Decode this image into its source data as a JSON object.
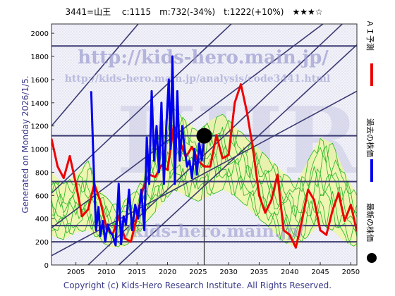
{
  "chart_data": {
    "type": "line",
    "title": "3441=山王　 c:1115　m:732(-34%)　t:1222(+10%)　★★★☆",
    "ylim": [
      0,
      2080
    ],
    "xlim": [
      2001,
      2051
    ],
    "y_ticks": [
      0,
      200,
      400,
      600,
      800,
      1000,
      1200,
      1400,
      1600,
      1800,
      2000
    ],
    "x_ticks": [
      2005,
      2010,
      2015,
      2020,
      2025,
      2030,
      2035,
      2040,
      2045,
      2050
    ],
    "generated_label": "Generated on Monday 2026/1/5.",
    "copyright": "Copyright (c) Kids-Hero Research Institute. All Rights Reserved.",
    "watermark_url": "http://kids-hero.main.jp/",
    "watermark_url_small": "http://kids-hero.main.jp/analysis/code3441.html",
    "watermark_small": "//kids-hero.main.jp/",
    "watermark_big": "KHRI",
    "legend": [
      {
        "name": "ＡＩ予測",
        "color": "#ee0000",
        "kind": "line"
      },
      {
        "name": "過去の株価",
        "color": "#0000ee",
        "kind": "line"
      },
      {
        "name": "最新の株価",
        "color": "#000000",
        "kind": "dot"
      }
    ],
    "horizontal_lines": [
      200,
      340,
      720,
      1115,
      1890
    ],
    "current_point": {
      "x": 2026.0,
      "y": 1115
    },
    "current_x_marker": 2026.0,
    "diagonals": [
      {
        "x1": 2001,
        "y1": 80,
        "x2": 2051,
        "y2": 1500
      },
      {
        "x1": 2001,
        "y1": 320,
        "x2": 2051,
        "y2": 2300
      },
      {
        "x1": 2001,
        "y1": 620,
        "x2": 2051,
        "y2": 3100
      },
      {
        "x1": 2001,
        "y1": 1200,
        "x2": 2051,
        "y2": 4300
      },
      {
        "x1": 2007,
        "y1": 0,
        "x2": 2051,
        "y2": 2200
      },
      {
        "x1": 2012,
        "y1": 0,
        "x2": 2051,
        "y2": 1900
      }
    ],
    "band": {
      "x": [
        2001,
        2003,
        2005,
        2007,
        2009,
        2011,
        2013,
        2015,
        2017,
        2019,
        2021,
        2023,
        2025,
        2027,
        2029,
        2031,
        2033,
        2035,
        2037,
        2039,
        2041,
        2043,
        2045,
        2047,
        2049,
        2051
      ],
      "upper": [
        800,
        700,
        780,
        900,
        650,
        520,
        560,
        650,
        950,
        1150,
        1350,
        1250,
        1150,
        1250,
        1300,
        1200,
        1100,
        1000,
        900,
        800,
        700,
        900,
        1100,
        1050,
        800,
        600
      ],
      "lower": [
        250,
        220,
        280,
        300,
        200,
        150,
        160,
        250,
        400,
        520,
        650,
        600,
        550,
        600,
        650,
        600,
        500,
        400,
        300,
        200,
        150,
        250,
        350,
        300,
        200,
        150
      ]
    },
    "series": [
      {
        "name": "ＡＩ予測",
        "color": "#ee0000",
        "x": [
          2001,
          2002,
          2003,
          2004,
          2005,
          2006,
          2007,
          2008,
          2009,
          2010,
          2011,
          2012,
          2013,
          2014,
          2015,
          2016,
          2017,
          2018,
          2019,
          2020,
          2021,
          2022,
          2023,
          2024,
          2025,
          2026,
          2027,
          2028,
          2029,
          2030,
          2031,
          2032,
          2033,
          2034,
          2035,
          2036,
          2037,
          2038,
          2039,
          2040,
          2041,
          2042,
          2043,
          2044,
          2045,
          2046,
          2047,
          2048,
          2049,
          2050,
          2051
        ],
        "y": [
          1090,
          850,
          750,
          940,
          700,
          420,
          480,
          700,
          550,
          320,
          260,
          420,
          230,
          200,
          420,
          660,
          780,
          760,
          860,
          820,
          1200,
          1070,
          930,
          1020,
          900,
          850,
          850,
          1120,
          920,
          950,
          1400,
          1560,
          1320,
          1000,
          600,
          450,
          560,
          780,
          300,
          260,
          150,
          380,
          650,
          560,
          300,
          260,
          470,
          620,
          380,
          520,
          290
        ]
      },
      {
        "name": "過去の株価",
        "color": "#0000ee",
        "x": [
          2007.5,
          2008.0,
          2008.3,
          2008.7,
          2009.0,
          2009.4,
          2009.8,
          2010.2,
          2010.6,
          2011.0,
          2011.5,
          2012.0,
          2012.4,
          2012.8,
          2013.2,
          2013.7,
          2014.2,
          2014.7,
          2015.2,
          2015.7,
          2016.2,
          2016.6,
          2017.0,
          2017.4,
          2017.8,
          2018.2,
          2018.6,
          2019.0,
          2019.4,
          2019.8,
          2020.2,
          2020.5,
          2020.8,
          2021.2,
          2021.6,
          2022.0,
          2022.4,
          2022.8,
          2023.2,
          2023.6,
          2024.0,
          2024.4,
          2024.8,
          2025.2,
          2025.6,
          2026.0
        ],
        "y": [
          1500,
          700,
          300,
          500,
          250,
          380,
          200,
          350,
          280,
          260,
          170,
          700,
          180,
          420,
          350,
          650,
          300,
          520,
          400,
          650,
          300,
          1100,
          700,
          1500,
          900,
          1200,
          800,
          1400,
          700,
          1200,
          1600,
          1000,
          1800,
          700,
          1500,
          900,
          1200,
          1000,
          850,
          900,
          750,
          1000,
          780,
          1050,
          900,
          1115
        ]
      }
    ]
  }
}
